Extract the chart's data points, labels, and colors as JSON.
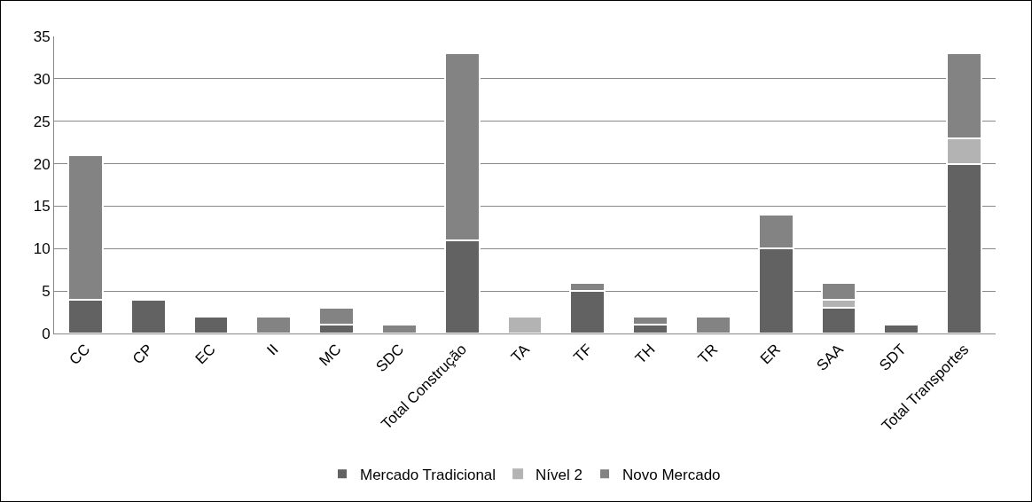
{
  "chart_data": {
    "type": "bar",
    "stacked": true,
    "categories": [
      "CC",
      "CP",
      "EC",
      "II",
      "MC",
      "SDC",
      "Total Construção",
      "TA",
      "TF",
      "TH",
      "TR",
      "ER",
      "SAA",
      "SDT",
      "Total Transportes"
    ],
    "series": [
      {
        "name": "Mercado Tradicional",
        "color": "#626262",
        "values": [
          4,
          4,
          2,
          0,
          1,
          0,
          11,
          0,
          5,
          1,
          0,
          10,
          3,
          1,
          20
        ]
      },
      {
        "name": "Nível 2",
        "color": "#b3b3b3",
        "values": [
          0,
          0,
          0,
          0,
          0,
          0,
          0,
          2,
          0,
          0,
          0,
          0,
          1,
          0,
          3
        ]
      },
      {
        "name": "Novo Mercado",
        "color": "#838383",
        "values": [
          17,
          0,
          0,
          2,
          2,
          1,
          22,
          0,
          1,
          1,
          2,
          4,
          2,
          0,
          10
        ]
      }
    ],
    "ylim": [
      0,
      35
    ],
    "yticks": [
      0,
      5,
      10,
      15,
      20,
      25,
      30,
      35
    ],
    "grid": "y",
    "legend": "bottom"
  }
}
